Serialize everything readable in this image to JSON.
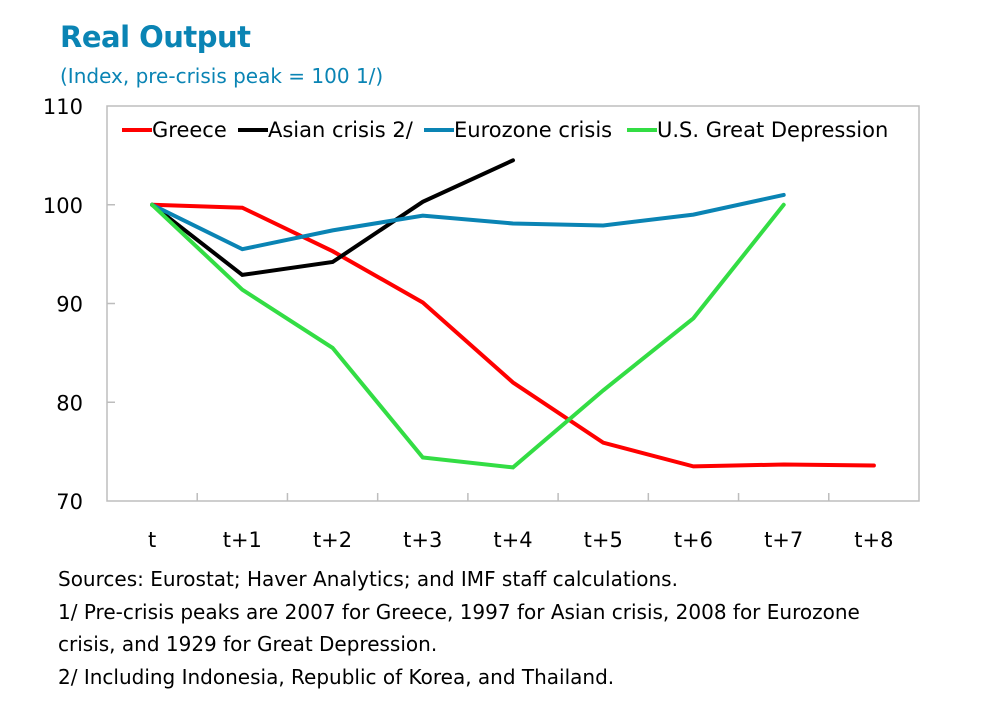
{
  "chart_data": {
    "type": "line",
    "title": "Real Output",
    "subtitle": "(Index, pre-crisis peak = 100 1/)",
    "xlabel": "",
    "ylabel": "",
    "categories": [
      "t",
      "t+1",
      "t+2",
      "t+3",
      "t+4",
      "t+5",
      "t+6",
      "t+7",
      "t+8"
    ],
    "ylim": [
      70,
      110
    ],
    "yticks": [
      70,
      80,
      90,
      100,
      110
    ],
    "grid": false,
    "legend_position": "top",
    "series": [
      {
        "name": "Greece",
        "color": "#ff0000",
        "values": [
          100,
          99.7,
          95.3,
          90.1,
          82.0,
          75.9,
          73.5,
          73.7,
          73.6
        ]
      },
      {
        "name": "Asian crisis 2/",
        "color": "#000000",
        "values": [
          100,
          92.9,
          94.2,
          100.3,
          104.5
        ]
      },
      {
        "name": "Eurozone crisis",
        "color": "#0a84b4",
        "values": [
          100,
          95.5,
          97.4,
          98.9,
          98.1,
          97.9,
          99.0,
          101.0
        ]
      },
      {
        "name": "U.S. Great Depression",
        "color": "#33dd44",
        "values": [
          100,
          91.4,
          85.5,
          74.4,
          73.4,
          81.2,
          88.5,
          100.0
        ]
      }
    ]
  },
  "notes": [
    "Sources: Eurostat; Haver Analytics; and IMF staff calculations.",
    "1/ Pre-crisis peaks are 2007 for Greece, 1997 for Asian crisis, 2008 for Eurozone",
    "crisis, and 1929 for Great Depression.",
    "2/ Including Indonesia, Republic of Korea, and Thailand."
  ]
}
